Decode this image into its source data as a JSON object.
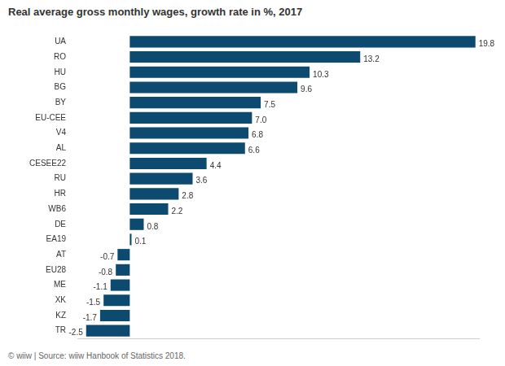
{
  "chart_data": {
    "type": "bar",
    "title": "Real average gross monthly wages, growth rate in %, 2017",
    "source": "© wiiw | Source: wiiw Hanbook of Statistics 2018.",
    "orientation": "horizontal",
    "categories": [
      "UA",
      "RO",
      "HU",
      "BG",
      "BY",
      "EU-CEE",
      "V4",
      "AL",
      "CESEE22",
      "RU",
      "HR",
      "WB6",
      "DE",
      "EA19",
      "AT",
      "EU28",
      "ME",
      "XK",
      "KZ",
      "TR"
    ],
    "values": [
      19.8,
      13.2,
      10.3,
      9.6,
      7.5,
      7.0,
      6.8,
      6.6,
      4.4,
      3.6,
      2.8,
      2.2,
      0.8,
      0.1,
      -0.7,
      -0.8,
      -1.1,
      -1.5,
      -1.7,
      -2.5
    ],
    "value_labels": [
      "19.8",
      "13.2",
      "10.3",
      "9.6",
      "7.5",
      "7.0",
      "6.8",
      "6.6",
      "4.4",
      "3.6",
      "2.8",
      "2.2",
      "0.8",
      "0.1",
      "-0.7",
      "-0.8",
      "-1.1",
      "-1.5",
      "-1.7",
      "-2.5"
    ],
    "color": "#0d4a70",
    "xlim": [
      -3,
      20
    ],
    "grid": false,
    "data_labels": true,
    "tick_labels": "y"
  }
}
